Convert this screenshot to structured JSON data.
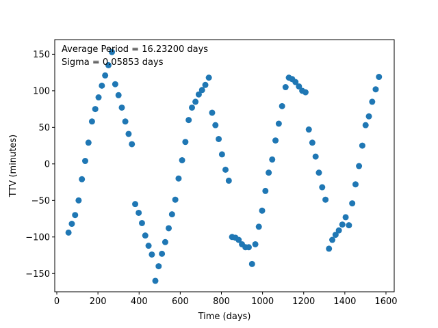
{
  "chart_data": {
    "type": "scatter",
    "title": "",
    "xlabel": "Time (days)",
    "ylabel": "TTV (minutes)",
    "xlim": [
      -10,
      1640
    ],
    "ylim": [
      -175,
      170
    ],
    "xticks": [
      0,
      200,
      400,
      600,
      800,
      1000,
      1200,
      1400,
      1600
    ],
    "yticks": [
      -150,
      -100,
      -50,
      0,
      50,
      100,
      150
    ],
    "grid": false,
    "legend": "none",
    "point_color": "#1f77b4",
    "annotations": [
      "Average Period = 16.23200 days",
      "Sigma = 0.05853 days"
    ],
    "series": [
      {
        "x": [
          57,
          73,
          89,
          106,
          122,
          138,
          154,
          171,
          187,
          203,
          219,
          235,
          251,
          268,
          284,
          300,
          316,
          333,
          349,
          365,
          381,
          398,
          414,
          430,
          446,
          462,
          479,
          495,
          511,
          527,
          544,
          560,
          576,
          592,
          609,
          625,
          641,
          657,
          674,
          690,
          706,
          722,
          739,
          755,
          771,
          787,
          803,
          820,
          836,
          852,
          868,
          884,
          900,
          917,
          933,
          949,
          965,
          982,
          998,
          1014,
          1030,
          1047,
          1063,
          1079,
          1095,
          1112,
          1128,
          1144,
          1160,
          1177,
          1193,
          1209,
          1225,
          1242,
          1258,
          1274,
          1290,
          1306,
          1323,
          1339,
          1355,
          1371,
          1388,
          1404,
          1420,
          1436,
          1452,
          1469,
          1485,
          1501,
          1517,
          1533,
          1550,
          1566
        ],
        "y": [
          -94,
          -82,
          -70,
          -50,
          -21,
          4,
          29,
          58,
          75,
          91,
          107,
          121,
          135,
          153,
          109,
          94,
          77,
          58,
          41,
          27,
          -55,
          -67,
          -81,
          -98,
          -112,
          -124,
          -160,
          -140,
          -123,
          -107,
          -88,
          -69,
          -49,
          -20,
          5,
          30,
          60,
          77,
          85,
          95,
          101,
          108,
          118,
          70,
          53,
          34,
          13,
          -8,
          -23,
          -100,
          -101,
          -104,
          -110,
          -114,
          -114,
          -137,
          -110,
          -86,
          -64,
          -37,
          -12,
          6,
          32,
          55,
          79,
          105,
          118,
          116,
          112,
          106,
          100,
          98,
          47,
          29,
          10,
          -12,
          -32,
          -49,
          -116,
          -104,
          -97,
          -91,
          -83,
          -73,
          -84,
          -54,
          -28,
          -3,
          25,
          53,
          65,
          85,
          102,
          119
        ]
      }
    ]
  }
}
